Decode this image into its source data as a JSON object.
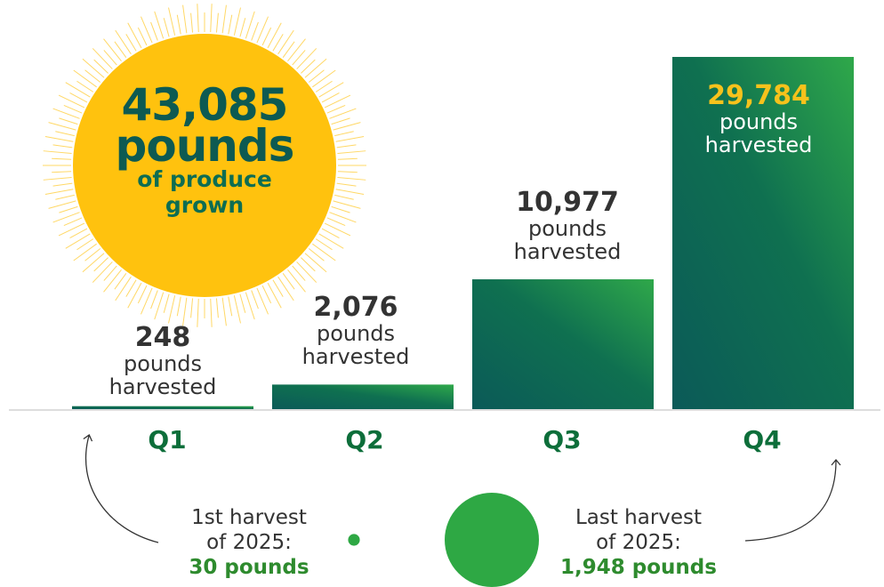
{
  "colors": {
    "sun": "#ffc20e",
    "sun_rays": "#ffd866",
    "bar_dark": "#0b5a58",
    "bar_light": "#2fa84a",
    "value_green": "#2e8b3a",
    "value_yellow": "#f6c21c",
    "quarter_green": "#0d6e3a",
    "circle_green": "#2ea844",
    "axis": "#dddddd"
  },
  "sun": {
    "total": "43,085",
    "unit": "pounds",
    "line1": "of produce",
    "line2": "grown",
    "icon": "sun-icon"
  },
  "chart_data": {
    "type": "bar",
    "categories": [
      "Q1",
      "Q2",
      "Q3",
      "Q4"
    ],
    "values": [
      248,
      2076,
      10977,
      29784
    ],
    "value_labels": [
      "248",
      "2,076",
      "10,977",
      "29,784"
    ],
    "unit_line1": "pounds",
    "unit_line2": "harvested",
    "ylim": [
      0,
      30000
    ],
    "grid": false,
    "legend": "none"
  },
  "notes": {
    "first": {
      "line1": "1st harvest",
      "line2": "of 2025:",
      "amount": "30 pounds",
      "value": 30
    },
    "last": {
      "line1": "Last harvest",
      "line2": "of 2025:",
      "amount": "1,948 pounds",
      "value": 1948
    }
  }
}
